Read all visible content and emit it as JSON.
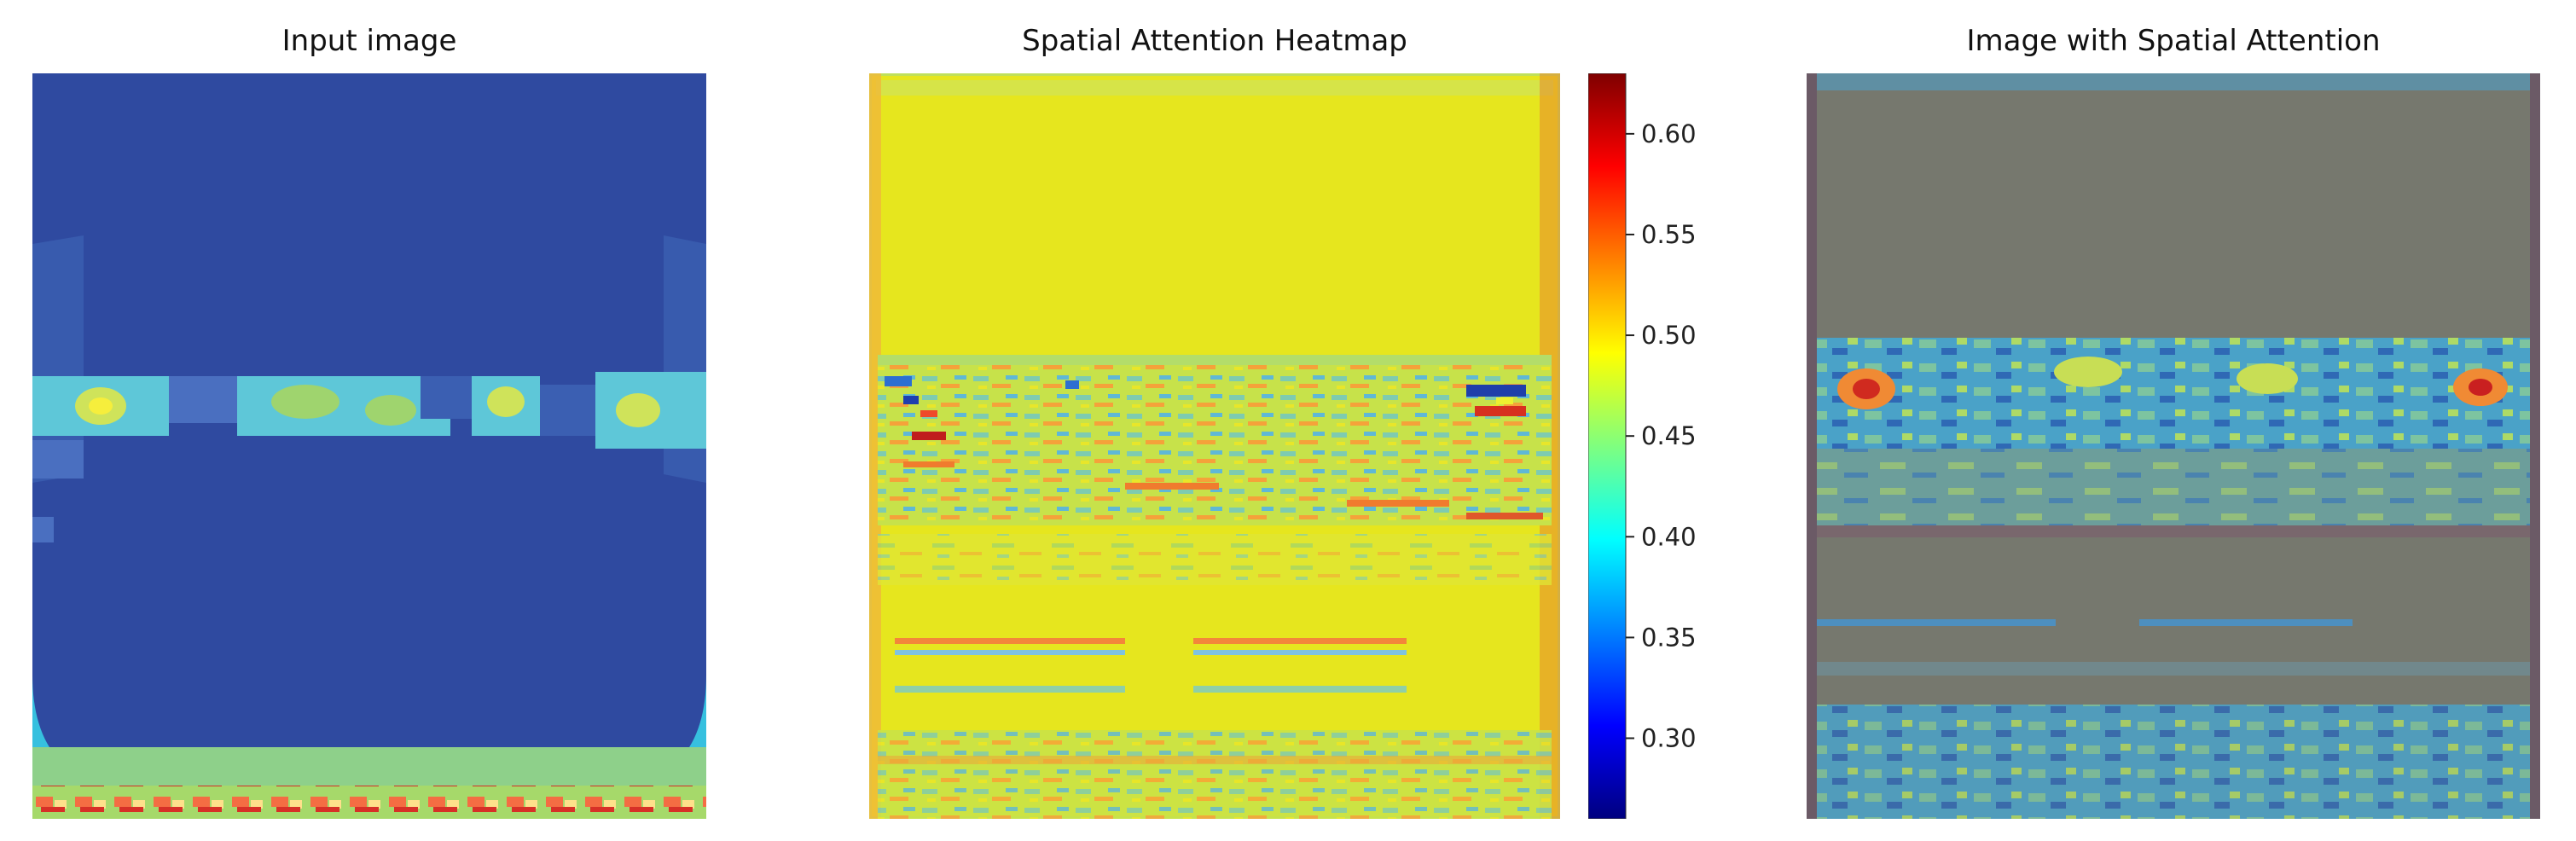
{
  "figure": {
    "panels": [
      {
        "id": "input",
        "title": "Input image"
      },
      {
        "id": "heatmap",
        "title": "Spatial Attention Heatmap"
      },
      {
        "id": "overlay",
        "title": "Image with Spatial Attention"
      }
    ]
  },
  "chart_data": {
    "type": "heatmap",
    "colormap": "jet",
    "colorbar": {
      "min": 0.26,
      "max": 0.63,
      "ticks": [
        0.3,
        0.35,
        0.4,
        0.45,
        0.5,
        0.55,
        0.6
      ],
      "tick_labels": [
        "0.30",
        "0.35",
        "0.40",
        "0.45",
        "0.50",
        "0.55",
        "0.60"
      ]
    },
    "axes_visible": false,
    "colors": {
      "input_background": "#2f4aa0",
      "input_band": "#3fa9e0",
      "heatmap_base": "#e6e61e",
      "overlay_base": "#76786e"
    }
  }
}
